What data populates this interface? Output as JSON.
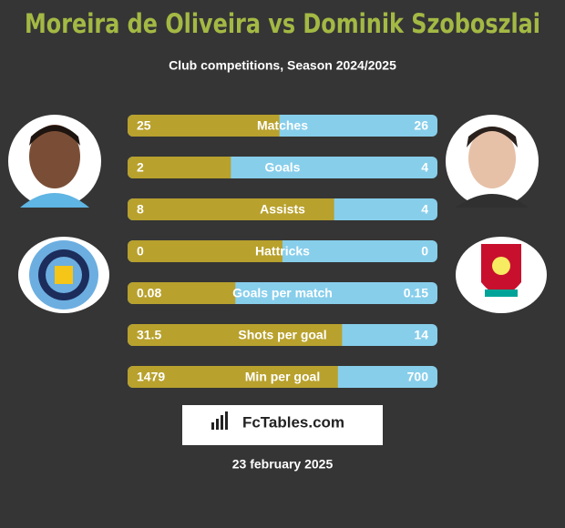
{
  "title": "Moreira de Oliveira vs Dominik Szoboszlai",
  "subtitle": "Club competitions, Season 2024/2025",
  "rows": [
    {
      "label": "Matches",
      "left": 25,
      "right": 26
    },
    {
      "label": "Goals",
      "left": 2,
      "right": 4
    },
    {
      "label": "Assists",
      "left": 8,
      "right": 4
    },
    {
      "label": "Hattricks",
      "left": 0,
      "right": 0
    },
    {
      "label": "Goals per match",
      "left": 0.08,
      "right": 0.15
    },
    {
      "label": "Shots per goal",
      "left": 31.5,
      "right": 14
    },
    {
      "label": "Min per goal",
      "left": 1479,
      "right": 700
    }
  ],
  "brand": "FcTables.com",
  "date": "23 february 2025"
}
